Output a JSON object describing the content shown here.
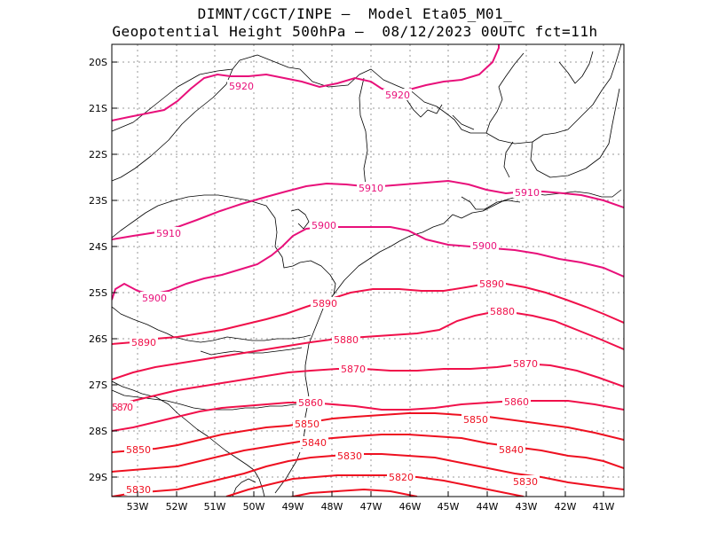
{
  "title": {
    "line1": "DIMNT/CGCT/INPE –  Model Eta05_M01_",
    "line2": "Geopotential Height 500hPa –  08/12/2023 00UTC fct=11h"
  },
  "axes": {
    "lat_labels": [
      "20S",
      "21S",
      "22S",
      "23S",
      "24S",
      "25S",
      "26S",
      "27S",
      "28S",
      "29S"
    ],
    "lon_labels": [
      "53W",
      "52W",
      "51W",
      "50W",
      "49W",
      "48W",
      "47W",
      "46W",
      "45W",
      "44W",
      "43W",
      "42W",
      "41W"
    ]
  },
  "colors": {
    "high": "#e8107a",
    "mid": "#f0104a",
    "low": "#ee1020",
    "grid": "#999999",
    "coast": "#000000"
  },
  "contours": [
    {
      "value": 5920,
      "labels": [
        "5920",
        "5920"
      ]
    },
    {
      "value": 5910,
      "labels": [
        "5910",
        "5910",
        "5910"
      ]
    },
    {
      "value": 5900,
      "labels": [
        "5900",
        "5900",
        "5900"
      ]
    },
    {
      "value": 5890,
      "labels": [
        "5890",
        "5890",
        "5890"
      ]
    },
    {
      "value": 5880,
      "labels": [
        "5880",
        "5880"
      ]
    },
    {
      "value": 5870,
      "labels": [
        "5870",
        "5870",
        "5870"
      ]
    },
    {
      "value": 5860,
      "labels": [
        "5860",
        "5860"
      ]
    },
    {
      "value": 5850,
      "labels": [
        "5850",
        "5850",
        "5850"
      ]
    },
    {
      "value": 5840,
      "labels": [
        "5840",
        "5840"
      ]
    },
    {
      "value": 5830,
      "labels": [
        "5830",
        "5830",
        "5830"
      ]
    },
    {
      "value": 5820,
      "labels": [
        "5820"
      ]
    }
  ]
}
